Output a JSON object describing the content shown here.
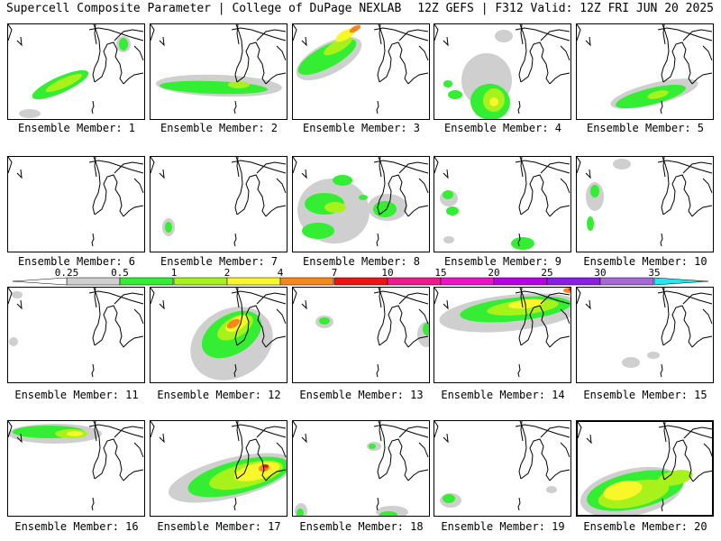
{
  "header": {
    "left_title": "Supercell Composite Parameter | College of DuPage NEXLAB",
    "right_title": "12Z GEFS | F312 Valid: 12Z FRI JUN 20 2025"
  },
  "legend": {
    "ticks": [
      "0.25",
      "0.5",
      "1",
      "2",
      "4",
      "7",
      "10",
      "15",
      "20",
      "25",
      "30",
      "35"
    ],
    "colors": [
      "#cfcfcf",
      "#33ee33",
      "#a6f21a",
      "#f7f729",
      "#f9861d",
      "#ed1414",
      "#ee1b8e",
      "#ec12c9",
      "#b800e4",
      "#8a1ee2",
      "#a768d6",
      "#23e8ef"
    ]
  },
  "colors": {
    "gray": "#cfcfcf",
    "green": "#33ee33",
    "lightgreen": "#a6f21a",
    "yellow": "#f7f729",
    "orange": "#f9861d",
    "red": "#ed1414"
  },
  "members": [
    {
      "label": "Ensemble Member: 1"
    },
    {
      "label": "Ensemble Member: 2"
    },
    {
      "label": "Ensemble Member: 3"
    },
    {
      "label": "Ensemble Member: 4"
    },
    {
      "label": "Ensemble Member: 5"
    },
    {
      "label": "Ensemble Member: 6"
    },
    {
      "label": "Ensemble Member: 7"
    },
    {
      "label": "Ensemble Member: 8"
    },
    {
      "label": "Ensemble Member: 9"
    },
    {
      "label": "Ensemble Member: 10"
    },
    {
      "label": "Ensemble Member: 11"
    },
    {
      "label": "Ensemble Member: 12"
    },
    {
      "label": "Ensemble Member: 13"
    },
    {
      "label": "Ensemble Member: 14"
    },
    {
      "label": "Ensemble Member: 15"
    },
    {
      "label": "Ensemble Member: 16"
    },
    {
      "label": "Ensemble Member: 17"
    },
    {
      "label": "Ensemble Member: 18"
    },
    {
      "label": "Ensemble Member: 19"
    },
    {
      "label": "Ensemble Member: 20",
      "selected": true
    }
  ]
}
